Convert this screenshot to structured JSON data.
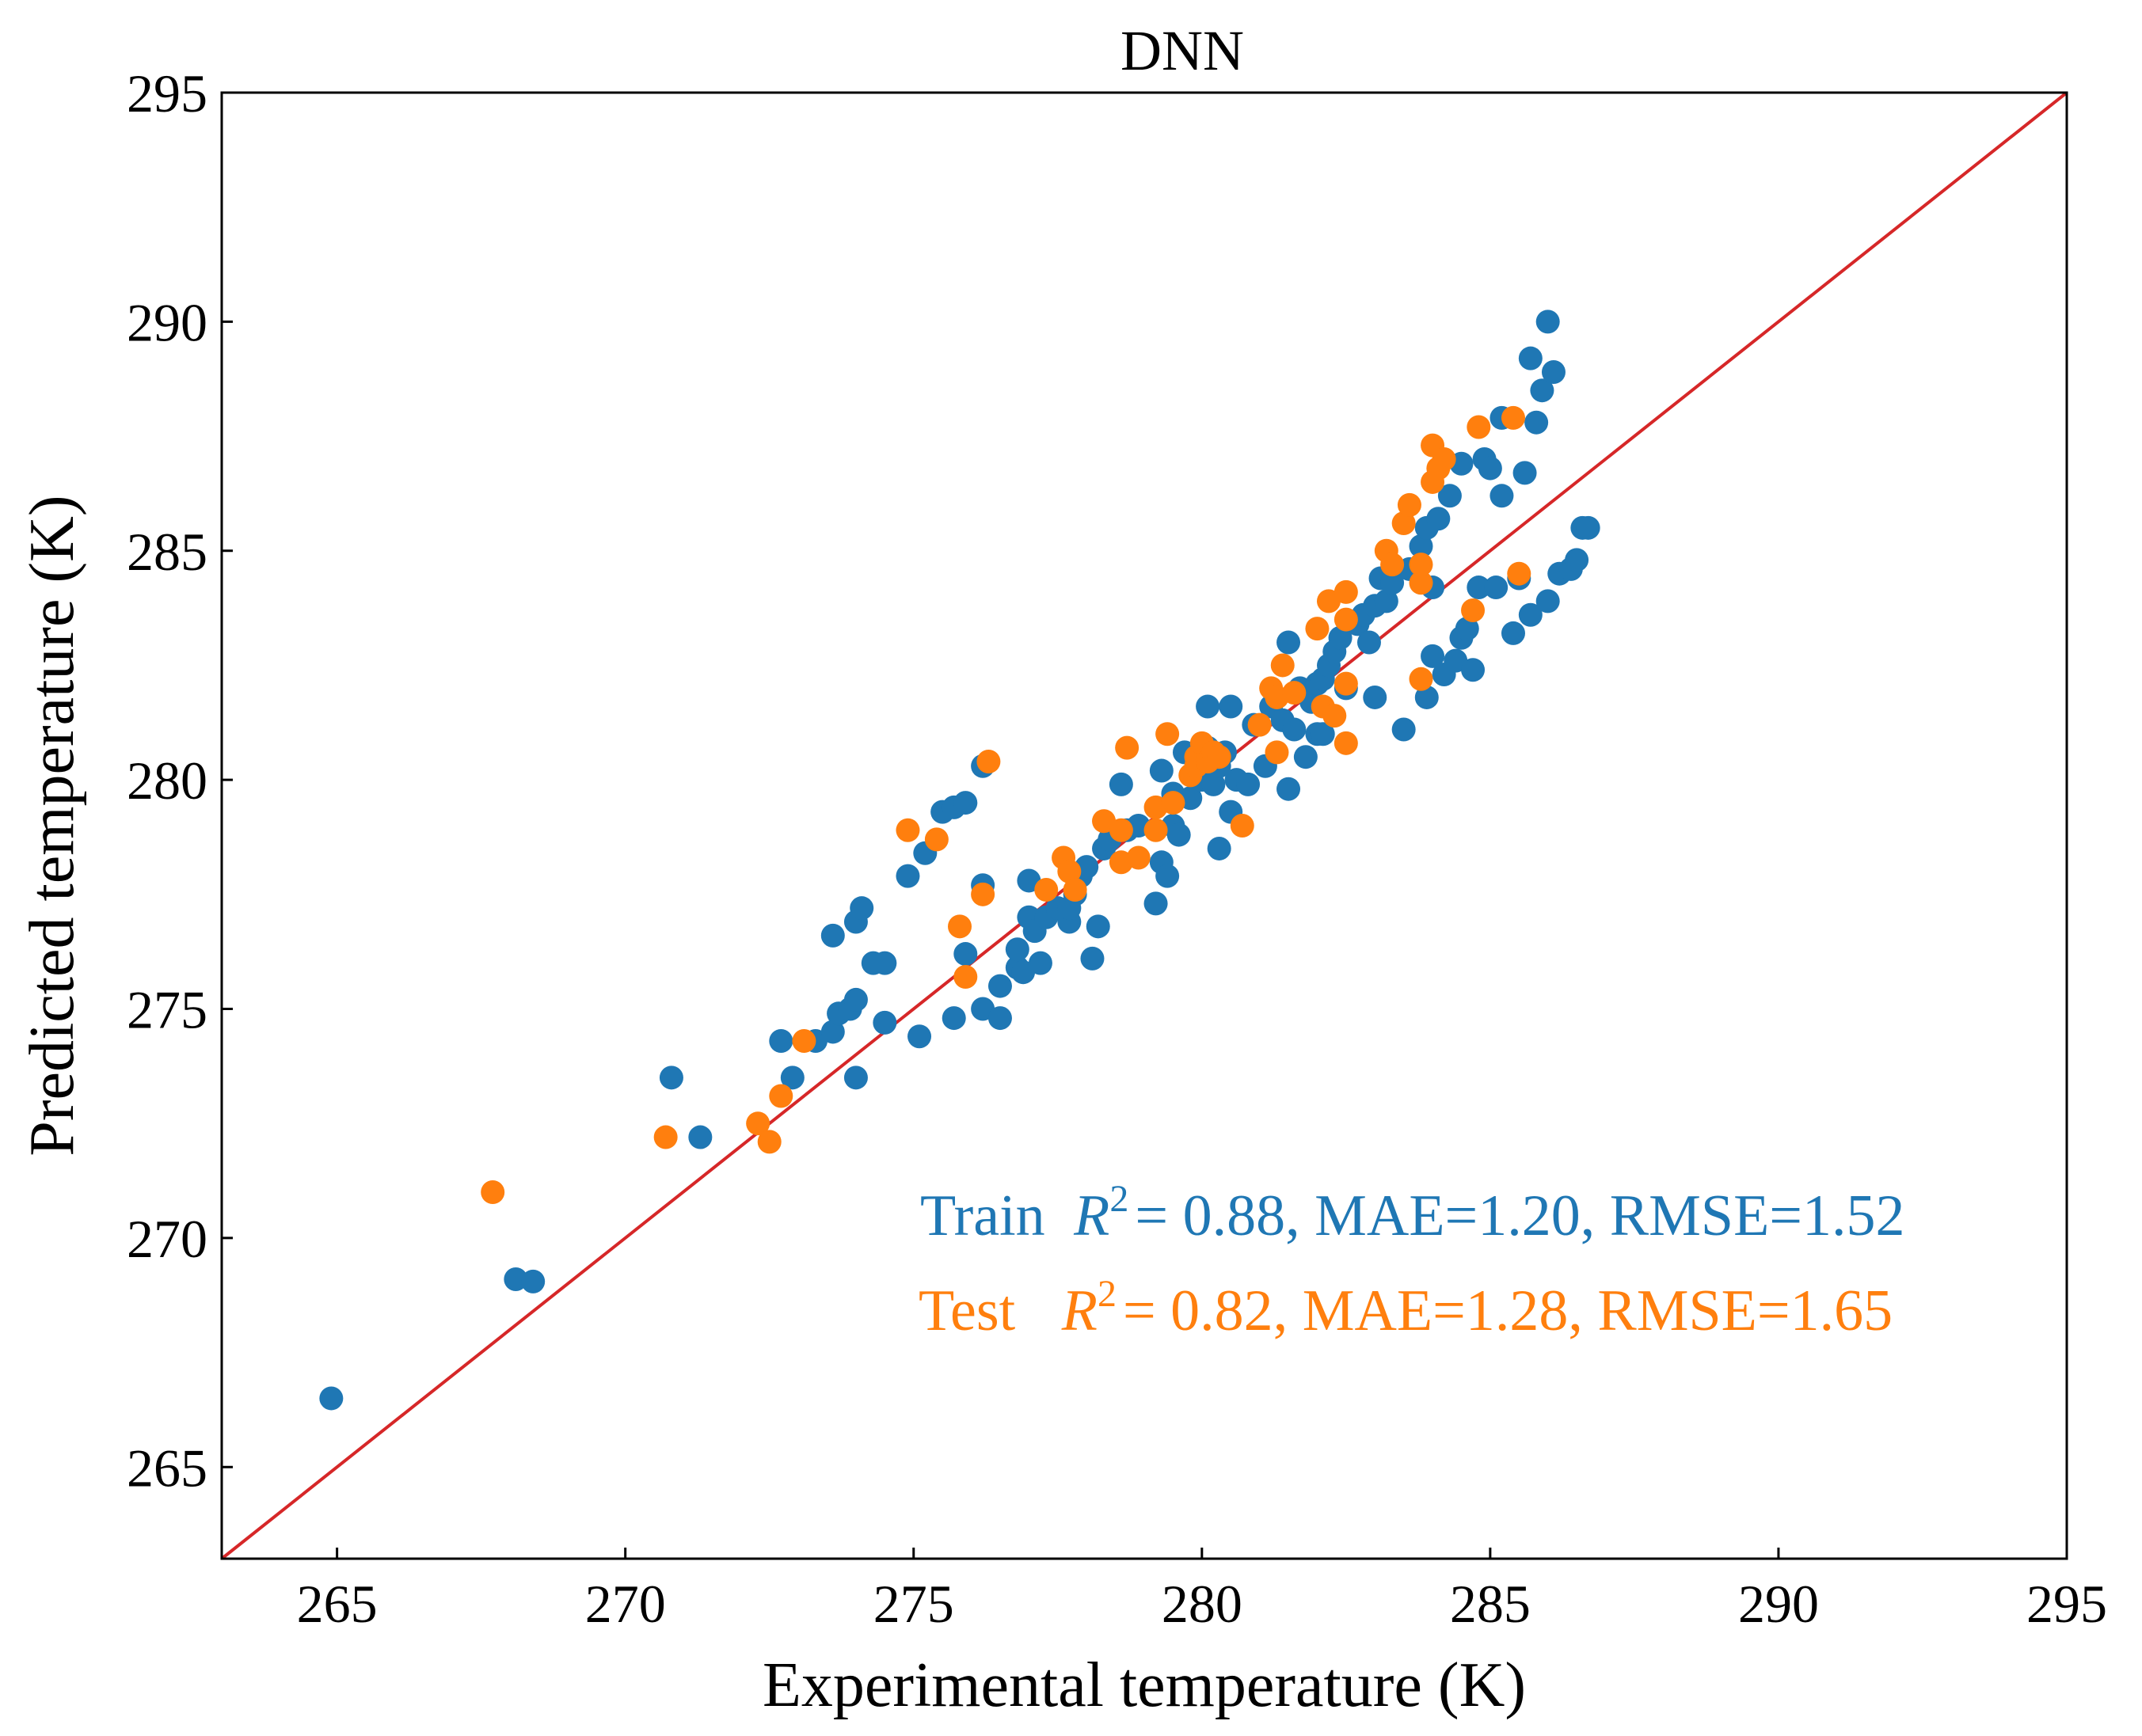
{
  "chart_data": {
    "type": "scatter",
    "title": "DNN",
    "xlabel": "Experimental temperature (K)",
    "ylabel": "Predicted temperature (K)",
    "xlim": [
      263,
      295
    ],
    "ylim": [
      263,
      295
    ],
    "xticks": [
      "265",
      "270",
      "275",
      "280",
      "285",
      "290",
      "295"
    ],
    "yticks": [
      "265",
      "270",
      "275",
      "280",
      "285",
      "290",
      "295"
    ],
    "grid": false,
    "reference_line": {
      "type": "y=x",
      "color": "#d62728"
    },
    "series": [
      {
        "name": "Train",
        "color": "#1f77b4",
        "points": [
          [
            264.9,
            266.5
          ],
          [
            268.1,
            269.1
          ],
          [
            268.4,
            269.05
          ],
          [
            270.8,
            273.5
          ],
          [
            271.3,
            272.2
          ],
          [
            272.7,
            274.3
          ],
          [
            272.9,
            273.5
          ],
          [
            273.3,
            274.3
          ],
          [
            273.6,
            276.6
          ],
          [
            273.6,
            274.5
          ],
          [
            273.7,
            274.9
          ],
          [
            273.9,
            275.0
          ],
          [
            274.0,
            275.2
          ],
          [
            274.0,
            276.9
          ],
          [
            274.1,
            277.2
          ],
          [
            274.0,
            273.5
          ],
          [
            274.3,
            276.0
          ],
          [
            274.5,
            276.0
          ],
          [
            274.5,
            274.7
          ],
          [
            274.9,
            277.9
          ],
          [
            275.1,
            274.4
          ],
          [
            275.2,
            278.4
          ],
          [
            275.5,
            279.3
          ],
          [
            275.7,
            279.4
          ],
          [
            275.7,
            274.8
          ],
          [
            275.9,
            279.5
          ],
          [
            275.9,
            276.2
          ],
          [
            276.2,
            280.3
          ],
          [
            276.2,
            277.7
          ],
          [
            276.2,
            275.0
          ],
          [
            276.5,
            274.8
          ],
          [
            276.5,
            275.5
          ],
          [
            276.8,
            275.9
          ],
          [
            276.8,
            276.3
          ],
          [
            276.9,
            275.8
          ],
          [
            277.0,
            277.0
          ],
          [
            277.0,
            277.8
          ],
          [
            277.1,
            276.7
          ],
          [
            277.2,
            276.0
          ],
          [
            277.3,
            277.0
          ],
          [
            277.5,
            277.2
          ],
          [
            277.7,
            276.9
          ],
          [
            277.7,
            277.2
          ],
          [
            277.8,
            277.5
          ],
          [
            277.9,
            277.9
          ],
          [
            278.0,
            278.1
          ],
          [
            278.1,
            276.1
          ],
          [
            278.2,
            276.8
          ],
          [
            278.3,
            278.5
          ],
          [
            278.4,
            278.7
          ],
          [
            278.6,
            279.9
          ],
          [
            278.7,
            278.9
          ],
          [
            278.9,
            279.0
          ],
          [
            279.2,
            277.3
          ],
          [
            279.3,
            278.2
          ],
          [
            279.3,
            280.2
          ],
          [
            279.4,
            277.9
          ],
          [
            279.5,
            279.0
          ],
          [
            279.5,
            279.7
          ],
          [
            279.6,
            278.8
          ],
          [
            279.7,
            280.6
          ],
          [
            279.8,
            279.6
          ],
          [
            279.9,
            280.2
          ],
          [
            280.0,
            280.0
          ],
          [
            280.1,
            281.6
          ],
          [
            280.1,
            280.7
          ],
          [
            280.2,
            279.9
          ],
          [
            280.3,
            280.3
          ],
          [
            280.3,
            278.5
          ],
          [
            280.4,
            280.6
          ],
          [
            280.5,
            281.6
          ],
          [
            280.5,
            279.3
          ],
          [
            280.6,
            280.0
          ],
          [
            280.8,
            279.9
          ],
          [
            280.9,
            281.2
          ],
          [
            281.1,
            280.3
          ],
          [
            281.2,
            281.6
          ],
          [
            281.4,
            281.3
          ],
          [
            281.5,
            279.8
          ],
          [
            281.5,
            283.0
          ],
          [
            281.6,
            281.1
          ],
          [
            281.7,
            282.0
          ],
          [
            281.8,
            280.5
          ],
          [
            281.9,
            281.7
          ],
          [
            282.0,
            282.1
          ],
          [
            282.0,
            281.0
          ],
          [
            282.1,
            282.2
          ],
          [
            282.1,
            281.0
          ],
          [
            282.2,
            282.5
          ],
          [
            282.3,
            282.8
          ],
          [
            282.4,
            283.1
          ],
          [
            282.5,
            282.0
          ],
          [
            282.7,
            283.4
          ],
          [
            282.8,
            283.6
          ],
          [
            282.9,
            283.0
          ],
          [
            283.0,
            283.8
          ],
          [
            283.0,
            281.8
          ],
          [
            283.1,
            284.4
          ],
          [
            283.2,
            283.9
          ],
          [
            283.3,
            284.3
          ],
          [
            283.5,
            281.1
          ],
          [
            283.6,
            284.6
          ],
          [
            283.8,
            285.1
          ],
          [
            283.9,
            285.5
          ],
          [
            283.9,
            281.8
          ],
          [
            284.0,
            282.7
          ],
          [
            284.0,
            284.2
          ],
          [
            284.1,
            285.7
          ],
          [
            284.2,
            282.3
          ],
          [
            284.3,
            286.2
          ],
          [
            284.4,
            282.6
          ],
          [
            284.5,
            283.1
          ],
          [
            284.5,
            286.9
          ],
          [
            284.6,
            283.3
          ],
          [
            284.7,
            282.4
          ],
          [
            284.8,
            284.2
          ],
          [
            284.9,
            287.0
          ],
          [
            285.0,
            286.8
          ],
          [
            285.1,
            284.2
          ],
          [
            285.2,
            287.9
          ],
          [
            285.2,
            286.2
          ],
          [
            285.4,
            283.2
          ],
          [
            285.5,
            284.4
          ],
          [
            285.6,
            286.7
          ],
          [
            285.7,
            289.2
          ],
          [
            285.7,
            283.6
          ],
          [
            285.8,
            287.8
          ],
          [
            285.9,
            288.5
          ],
          [
            286.0,
            283.9
          ],
          [
            286.0,
            290.0
          ],
          [
            286.1,
            288.9
          ],
          [
            286.2,
            284.5
          ],
          [
            286.4,
            284.6
          ],
          [
            286.5,
            284.8
          ],
          [
            286.6,
            285.5
          ],
          [
            286.7,
            285.5
          ]
        ]
      },
      {
        "name": "Test",
        "color": "#ff7f0e",
        "points": [
          [
            267.7,
            271.0
          ],
          [
            270.7,
            272.2
          ],
          [
            272.3,
            272.5
          ],
          [
            272.5,
            272.1
          ],
          [
            272.7,
            273.1
          ],
          [
            273.1,
            274.3
          ],
          [
            274.9,
            278.9
          ],
          [
            275.4,
            278.7
          ],
          [
            275.8,
            276.8
          ],
          [
            275.9,
            275.7
          ],
          [
            276.2,
            277.5
          ],
          [
            276.3,
            280.4
          ],
          [
            277.3,
            277.6
          ],
          [
            277.6,
            278.3
          ],
          [
            277.7,
            278.0
          ],
          [
            277.8,
            277.6
          ],
          [
            278.3,
            279.1
          ],
          [
            278.6,
            278.2
          ],
          [
            278.6,
            278.9
          ],
          [
            278.7,
            280.7
          ],
          [
            278.9,
            278.3
          ],
          [
            279.2,
            278.9
          ],
          [
            279.2,
            279.4
          ],
          [
            279.4,
            281.0
          ],
          [
            279.5,
            279.5
          ],
          [
            279.8,
            280.1
          ],
          [
            279.9,
            280.5
          ],
          [
            279.9,
            280.3
          ],
          [
            280.0,
            280.8
          ],
          [
            280.1,
            280.4
          ],
          [
            280.2,
            280.6
          ],
          [
            280.3,
            280.5
          ],
          [
            280.7,
            279.0
          ],
          [
            281.0,
            281.2
          ],
          [
            281.2,
            282.0
          ],
          [
            281.3,
            281.8
          ],
          [
            281.3,
            280.6
          ],
          [
            281.4,
            282.5
          ],
          [
            281.6,
            281.9
          ],
          [
            282.0,
            283.3
          ],
          [
            282.1,
            281.6
          ],
          [
            282.2,
            283.9
          ],
          [
            282.3,
            281.4
          ],
          [
            282.5,
            282.1
          ],
          [
            282.5,
            283.5
          ],
          [
            282.5,
            284.1
          ],
          [
            282.5,
            280.8
          ],
          [
            283.2,
            285.0
          ],
          [
            283.3,
            284.7
          ],
          [
            283.5,
            285.6
          ],
          [
            283.6,
            286.0
          ],
          [
            283.8,
            284.3
          ],
          [
            283.8,
            284.7
          ],
          [
            283.8,
            282.2
          ],
          [
            284.0,
            286.5
          ],
          [
            284.0,
            287.3
          ],
          [
            284.1,
            286.8
          ],
          [
            284.2,
            287.0
          ],
          [
            284.7,
            283.7
          ],
          [
            284.8,
            287.7
          ],
          [
            285.4,
            287.9
          ],
          [
            285.5,
            284.5
          ]
        ]
      }
    ],
    "annotations": [
      {
        "label": "Train",
        "r2": "= 0.88",
        "metrics": ", MAE=1.20, RMSE=1.52",
        "color": "#1f77b4"
      },
      {
        "label": "Test",
        "r2": "= 0.82",
        "metrics": ", MAE=1.28, RMSE=1.65",
        "color": "#ff7f0e"
      }
    ]
  }
}
